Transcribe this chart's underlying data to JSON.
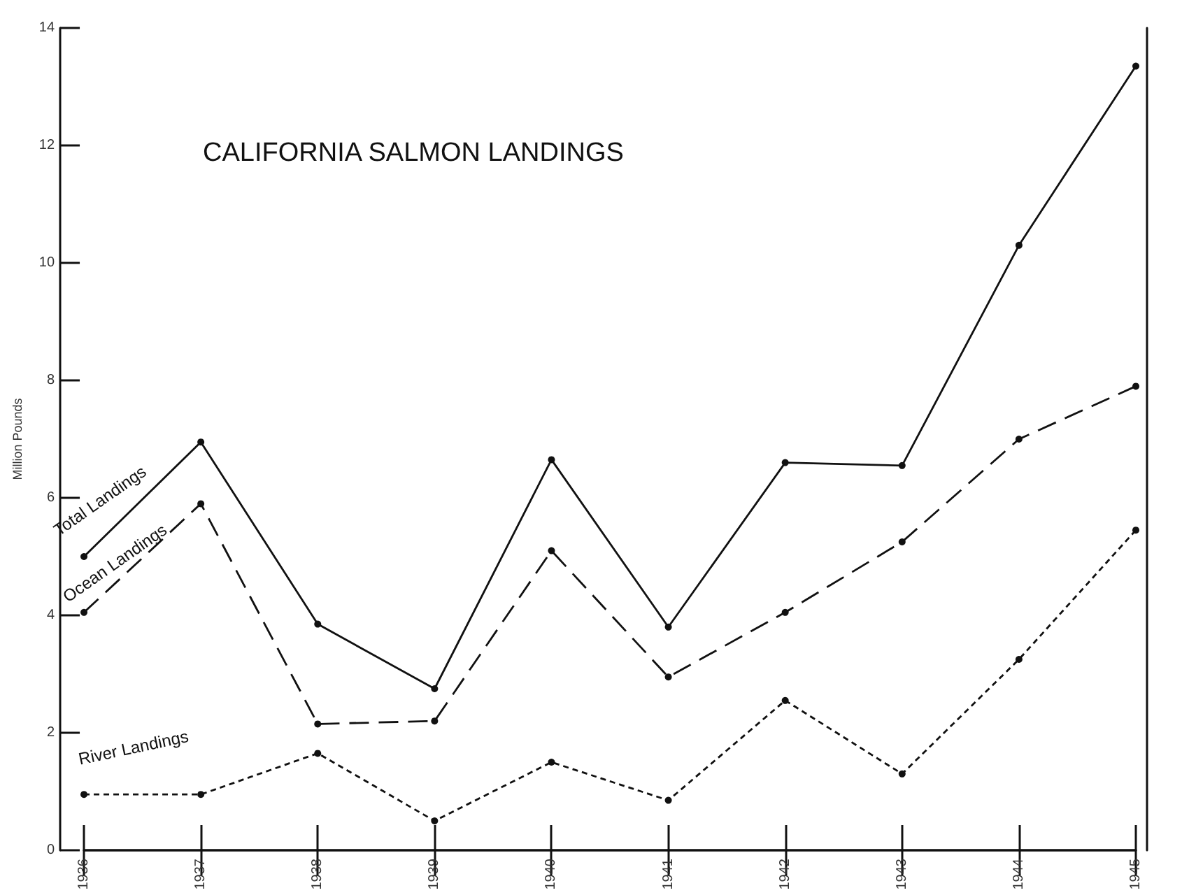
{
  "chart_data": {
    "type": "line",
    "title": "CALIFORNIA SALMON LANDINGS",
    "ylabel": "Million Pounds",
    "categories": [
      "1936",
      "1937",
      "1938",
      "1939",
      "1940",
      "1941",
      "1942",
      "1943",
      "1944",
      "1945"
    ],
    "series": [
      {
        "name": "Total Landings",
        "color": "#111111",
        "line_style": "solid",
        "values": [
          5.0,
          6.95,
          3.85,
          2.75,
          6.65,
          3.8,
          6.6,
          6.55,
          10.3,
          13.35
        ]
      },
      {
        "name": "Ocean Landings",
        "color": "#111111",
        "line_style": "dashed",
        "values": [
          4.05,
          5.9,
          2.15,
          2.2,
          5.1,
          2.95,
          4.05,
          5.25,
          7.0,
          7.9
        ]
      },
      {
        "name": "River Landings",
        "color": "#111111",
        "line_style": "dotted",
        "values": [
          0.95,
          0.95,
          1.65,
          0.5,
          1.5,
          0.85,
          2.55,
          1.3,
          3.25,
          5.45
        ]
      }
    ],
    "ylim": [
      0,
      14
    ],
    "yticks": [
      0,
      2,
      4,
      6,
      8,
      10,
      12,
      14
    ],
    "grid": false,
    "legend": false,
    "marker": "circle"
  }
}
